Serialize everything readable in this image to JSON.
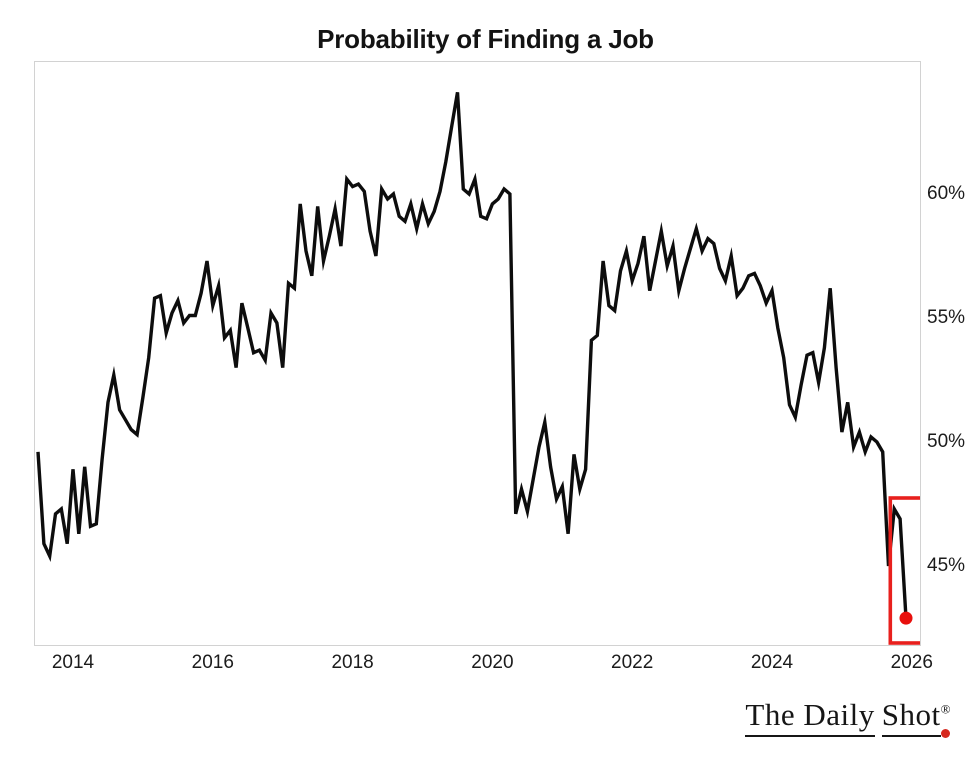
{
  "title": "Probability of Finding a Job",
  "logo": {
    "part1": "The Daily",
    "part2": "Shot",
    "registered": "®"
  },
  "chart_data": {
    "type": "line",
    "title": "Probability of Finding a Job",
    "frequency": "monthly",
    "start": "2013-06",
    "end": "2025-11",
    "unit": "%",
    "axis_side": "right",
    "grid": false,
    "x_ticks": [
      2014,
      2016,
      2018,
      2020,
      2022,
      2024,
      2026
    ],
    "x_tick_labels": [
      "2014",
      "2016",
      "2018",
      "2020",
      "2022",
      "2024",
      "2026"
    ],
    "y_ticks": [
      60,
      55,
      50,
      45
    ],
    "y_tick_labels": [
      "60%",
      "55%",
      "50%",
      "45%"
    ],
    "xlim": [
      2013.4,
      2026.15
    ],
    "ylim": [
      41.8,
      65.3
    ],
    "line_color": "#0d0d0d",
    "highlight": {
      "box_color": "#e8201d",
      "dot_color": "#e8100d",
      "last_point": {
        "year": 2025,
        "month": "Nov",
        "value": 42.9
      }
    },
    "series": [
      {
        "year": 2013,
        "first_month": "Jun",
        "values": [
          49.6,
          45.9,
          45.4,
          47.1,
          47.3,
          45.9,
          48.9
        ]
      },
      {
        "year": 2014,
        "first_month": "Jan",
        "values": [
          46.3,
          49.0,
          46.6,
          46.7,
          49.3,
          51.6,
          52.7,
          51.3,
          50.9,
          50.5,
          50.3,
          51.8
        ]
      },
      {
        "year": 2015,
        "first_month": "Jan",
        "values": [
          53.4,
          55.8,
          55.9,
          54.4,
          55.2,
          55.7,
          54.8,
          55.1,
          55.1,
          56.0,
          57.3,
          55.5
        ]
      },
      {
        "year": 2016,
        "first_month": "Jan",
        "values": [
          56.3,
          54.2,
          54.5,
          53.0,
          55.6,
          54.6,
          53.6,
          53.7,
          53.3,
          55.2,
          54.8,
          53.0
        ]
      },
      {
        "year": 2017,
        "first_month": "Jan",
        "values": [
          56.4,
          56.2,
          59.6,
          57.7,
          56.7,
          59.5,
          57.3,
          58.3,
          59.4,
          57.9,
          60.6,
          60.3
        ]
      },
      {
        "year": 2018,
        "first_month": "Jan",
        "values": [
          60.4,
          60.1,
          58.5,
          57.5,
          60.2,
          59.8,
          60.0,
          59.1,
          58.9,
          59.6,
          58.6,
          59.6
        ]
      },
      {
        "year": 2019,
        "first_month": "Jan",
        "values": [
          58.8,
          59.3,
          60.1,
          61.3,
          62.7,
          64.1,
          60.2,
          60.0,
          60.6,
          59.1,
          59.0,
          59.6
        ]
      },
      {
        "year": 2020,
        "first_month": "Jan",
        "values": [
          59.8,
          60.2,
          60.0,
          47.1,
          48.1,
          47.2,
          48.5,
          49.8,
          50.8,
          49.0,
          47.7,
          48.2
        ]
      },
      {
        "year": 2021,
        "first_month": "Jan",
        "values": [
          46.3,
          49.5,
          48.1,
          48.9,
          54.1,
          54.3,
          57.3,
          55.5,
          55.3,
          56.9,
          57.7,
          56.5
        ]
      },
      {
        "year": 2022,
        "first_month": "Jan",
        "values": [
          57.2,
          58.3,
          56.1,
          57.3,
          58.5,
          57.1,
          57.9,
          56.1,
          57.0,
          57.8,
          58.6,
          57.7
        ]
      },
      {
        "year": 2023,
        "first_month": "Jan",
        "values": [
          58.2,
          58.0,
          57.0,
          56.5,
          57.5,
          55.9,
          56.2,
          56.7,
          56.8,
          56.3,
          55.6,
          56.1
        ]
      },
      {
        "year": 2024,
        "first_month": "Jan",
        "values": [
          54.6,
          53.4,
          51.5,
          51.0,
          52.3,
          53.5,
          53.6,
          52.4,
          53.8,
          56.2,
          53.0,
          50.4
        ]
      },
      {
        "year": 2025,
        "first_month": "Jan",
        "values": [
          51.6,
          49.8,
          50.4,
          49.6,
          50.2,
          50.0,
          49.6,
          45.0,
          47.3,
          46.9,
          42.9
        ]
      }
    ]
  }
}
